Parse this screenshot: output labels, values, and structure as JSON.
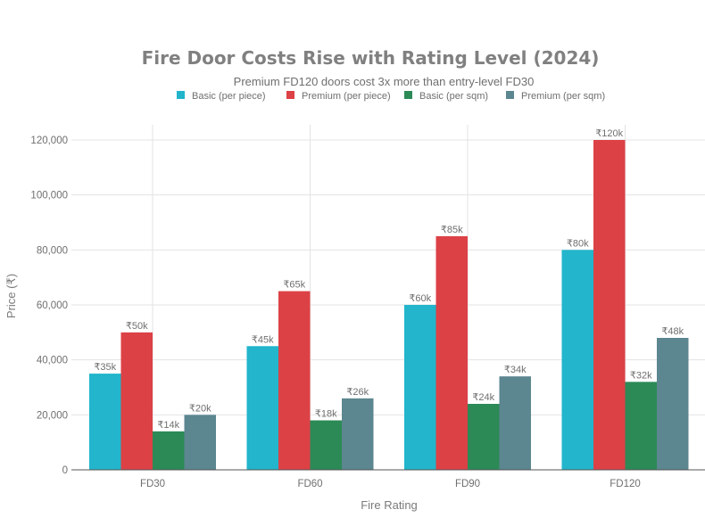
{
  "chart_data": {
    "type": "bar",
    "title": "Fire Door Costs Rise with Rating Level (2024)",
    "subtitle": "Premium FD120 doors cost 3x more than entry-level FD30",
    "xlabel": "Fire Rating",
    "ylabel": "Price (₹)",
    "categories": [
      "FD30",
      "FD60",
      "FD90",
      "FD120"
    ],
    "ylim": [
      0,
      126000
    ],
    "yticks": [
      0,
      20000,
      40000,
      60000,
      80000,
      100000,
      120000
    ],
    "ytick_labels": [
      "0",
      "20,000",
      "40,000",
      "60,000",
      "80,000",
      "100,000",
      "120,000"
    ],
    "grid": true,
    "legend_position": "top-center",
    "series": [
      {
        "name": "Basic (per piece)",
        "color": "#22b5cc",
        "values": [
          35000,
          45000,
          60000,
          80000
        ],
        "labels": [
          "₹35k",
          "₹45k",
          "₹60k",
          "₹80k"
        ]
      },
      {
        "name": "Premium (per piece)",
        "color": "#dc4146",
        "values": [
          50000,
          65000,
          85000,
          120000
        ],
        "labels": [
          "₹50k",
          "₹65k",
          "₹85k",
          "₹120k"
        ]
      },
      {
        "name": "Basic (per sqm)",
        "color": "#2c8a57",
        "values": [
          14000,
          18000,
          24000,
          32000
        ],
        "labels": [
          "₹14k",
          "₹18k",
          "₹24k",
          "₹32k"
        ]
      },
      {
        "name": "Premium (per sqm)",
        "color": "#5c8690",
        "values": [
          20000,
          26000,
          34000,
          48000
        ],
        "labels": [
          "₹20k",
          "₹26k",
          "₹34k",
          "₹48k"
        ]
      }
    ]
  }
}
